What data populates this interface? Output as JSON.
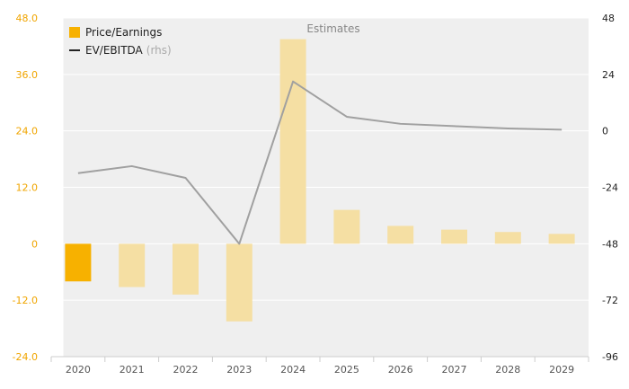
{
  "chart_data": {
    "type": "bar",
    "title": "",
    "categories": [
      "2020",
      "2021",
      "2022",
      "2023",
      "2024",
      "2025",
      "2026",
      "2027",
      "2028",
      "2029"
    ],
    "series": [
      {
        "name": "Price/Earnings",
        "type": "bar",
        "axis": "left",
        "values": [
          -8.0,
          -9.2,
          -10.8,
          -16.5,
          43.5,
          7.2,
          3.8,
          3.0,
          2.5,
          2.1
        ]
      },
      {
        "name": "EV/EBITDA",
        "name_suffix": "(rhs)",
        "type": "line",
        "axis": "right",
        "values": [
          -18,
          -15,
          -20,
          -48,
          21,
          6,
          3,
          2,
          1,
          0.5
        ]
      }
    ],
    "y_left": {
      "lim": [
        -24,
        48
      ],
      "ticks": [
        48.0,
        36.0,
        24.0,
        12.0,
        0,
        -12.0,
        -24.0
      ],
      "tick_labels": [
        "48.0",
        "36.0",
        "24.0",
        "12.0",
        "0",
        "-12.0",
        "-24.0"
      ]
    },
    "y_right": {
      "lim": [
        -96,
        48
      ],
      "ticks": [
        48,
        24,
        0,
        -24,
        -48,
        -72,
        -96
      ],
      "tick_labels": [
        "48",
        "24",
        "0",
        "-24",
        "-48",
        "-72",
        "-96"
      ]
    },
    "annotations": {
      "estimates_label": "Estimates",
      "shaded_from_category": "2020"
    },
    "legend": {
      "placement": "top-left"
    },
    "grid": true,
    "colors": {
      "bar_actual": "#f7b100",
      "bar_estimate": "#f5dfa3",
      "line": "#a0a0a0",
      "shade": "#efefef",
      "left_tick": "#f0a500",
      "grid": "#ffffff"
    },
    "actual_count": 1
  }
}
